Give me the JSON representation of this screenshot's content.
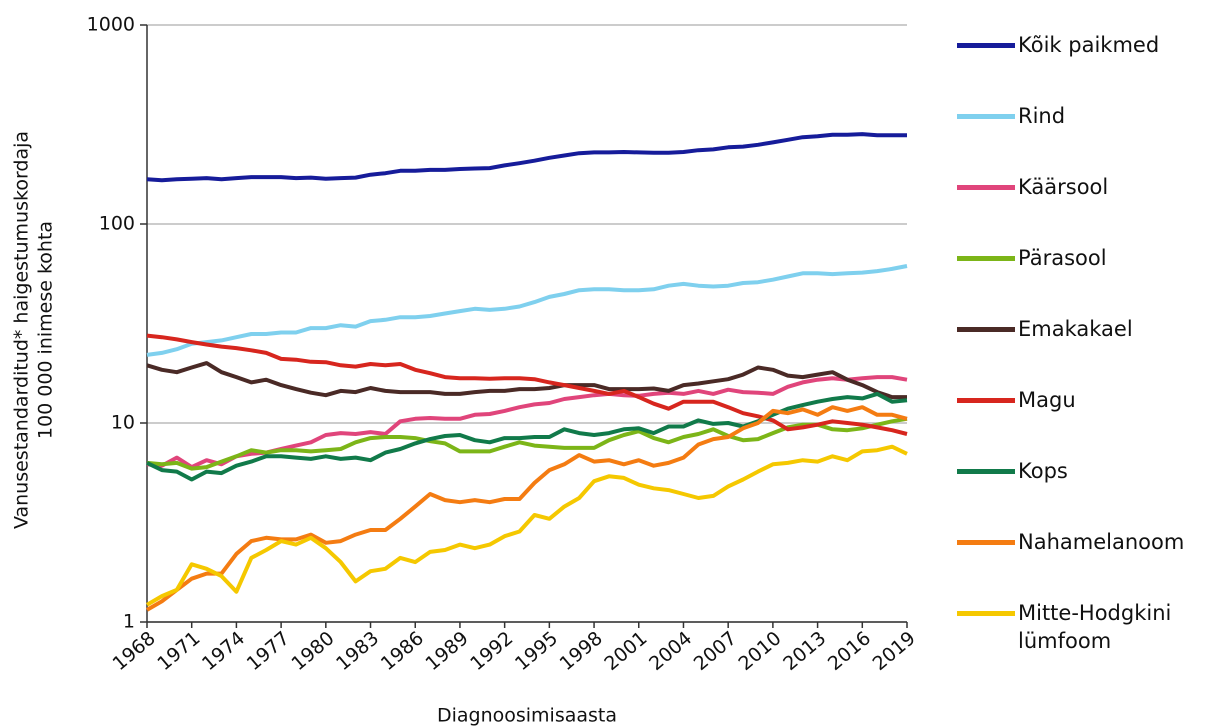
{
  "chart_data": {
    "type": "line",
    "ylabel": [
      "Vanusestandarditud* haigestumuskordaja",
      "100 000 inimese kohta"
    ],
    "xlabel": "Diagnoosimisaasta",
    "x": [
      1968,
      1969,
      1970,
      1971,
      1972,
      1973,
      1974,
      1975,
      1976,
      1977,
      1978,
      1979,
      1980,
      1981,
      1982,
      1983,
      1984,
      1985,
      1986,
      1987,
      1988,
      1989,
      1990,
      1991,
      1992,
      1993,
      1994,
      1995,
      1996,
      1997,
      1998,
      1999,
      2000,
      2001,
      2002,
      2003,
      2004,
      2005,
      2006,
      2007,
      2008,
      2009,
      2010,
      2011,
      2012,
      2013,
      2014,
      2015,
      2016,
      2017,
      2018,
      2019
    ],
    "xlim": [
      1968,
      2019
    ],
    "xticks": [
      1968,
      1971,
      1974,
      1977,
      1980,
      1983,
      1986,
      1989,
      1992,
      1995,
      1998,
      2001,
      2004,
      2007,
      2010,
      2013,
      2016,
      2019
    ],
    "ylim": [
      1,
      1000
    ],
    "yticks": [
      1,
      10,
      100,
      1000
    ],
    "log_y": true,
    "grid": true,
    "series": [
      {
        "name": "Kõik paikmed",
        "color": "#161c9a",
        "values": [
          168,
          166,
          168,
          169,
          170,
          168,
          170,
          172,
          172,
          172,
          170,
          171,
          169,
          170,
          171,
          177,
          180,
          185,
          185,
          187,
          187,
          189,
          190,
          191,
          197,
          202,
          208,
          215,
          221,
          227,
          229,
          229,
          230,
          229,
          228,
          228,
          230,
          235,
          237,
          243,
          245,
          250,
          257,
          265,
          273,
          276,
          281,
          281,
          283,
          279,
          279,
          279
        ]
      },
      {
        "name": "Rind",
        "color": "#7fd0ee",
        "values": [
          22,
          22.5,
          23.5,
          25,
          25.5,
          26,
          27,
          28,
          28,
          28.5,
          28.5,
          30,
          30,
          31,
          30.5,
          32.5,
          33,
          34,
          34,
          34.5,
          35.5,
          36.5,
          37.5,
          37,
          37.5,
          38.5,
          40.5,
          43,
          44.5,
          46.5,
          47,
          47,
          46.5,
          46.5,
          47,
          49,
          50,
          49,
          48.5,
          49,
          50.5,
          51,
          52.5,
          54.5,
          56.5,
          56.5,
          56,
          56.5,
          57,
          58,
          59.5,
          61.5
        ]
      },
      {
        "name": "Käärsool",
        "color": "#e0457b",
        "values": [
          6.2,
          6.1,
          6.7,
          6.0,
          6.5,
          6.2,
          6.8,
          7.0,
          7.1,
          7.4,
          7.7,
          8.0,
          8.7,
          8.9,
          8.8,
          9.0,
          8.8,
          10.2,
          10.5,
          10.6,
          10.5,
          10.5,
          11.0,
          11.1,
          11.5,
          12.0,
          12.4,
          12.6,
          13.2,
          13.5,
          13.8,
          14.0,
          13.8,
          13.7,
          14.0,
          14.2,
          14.0,
          14.5,
          14.0,
          14.7,
          14.3,
          14.2,
          14.0,
          15.2,
          16.0,
          16.5,
          16.8,
          16.5,
          16.8,
          17.0,
          17.0,
          16.5
        ]
      },
      {
        "name": "Pärasool",
        "color": "#7cb518",
        "values": [
          6.3,
          6.2,
          6.3,
          5.9,
          6.0,
          6.4,
          6.8,
          7.3,
          7.1,
          7.3,
          7.3,
          7.2,
          7.3,
          7.4,
          8.0,
          8.4,
          8.5,
          8.5,
          8.4,
          8.1,
          7.9,
          7.2,
          7.2,
          7.2,
          7.6,
          8.0,
          7.7,
          7.6,
          7.5,
          7.5,
          7.5,
          8.2,
          8.7,
          9.1,
          8.4,
          8.0,
          8.5,
          8.8,
          9.3,
          8.6,
          8.2,
          8.3,
          8.9,
          9.5,
          9.8,
          9.8,
          9.3,
          9.2,
          9.4,
          9.8,
          10.2,
          10.5
        ]
      },
      {
        "name": "Emakakael",
        "color": "#4a2a26",
        "values": [
          19.5,
          18.5,
          18.0,
          19.0,
          20.0,
          18.0,
          17.0,
          16.0,
          16.5,
          15.5,
          14.8,
          14.2,
          13.8,
          14.5,
          14.3,
          15.0,
          14.5,
          14.3,
          14.3,
          14.3,
          14.0,
          14.0,
          14.3,
          14.5,
          14.5,
          14.8,
          14.8,
          15.0,
          15.5,
          15.5,
          15.5,
          14.8,
          14.8,
          14.8,
          14.9,
          14.5,
          15.5,
          15.8,
          16.2,
          16.6,
          17.5,
          19.0,
          18.5,
          17.3,
          17.0,
          17.5,
          18.0,
          16.5,
          15.5,
          14.3,
          13.5,
          13.5
        ]
      },
      {
        "name": "Magu",
        "color": "#d7261e",
        "values": [
          27.5,
          27,
          26.3,
          25.5,
          24.8,
          24.2,
          23.8,
          23.2,
          22.5,
          21.0,
          20.8,
          20.3,
          20.2,
          19.5,
          19.2,
          19.8,
          19.5,
          19.8,
          18.5,
          17.8,
          17.0,
          16.8,
          16.8,
          16.7,
          16.8,
          16.8,
          16.6,
          16.0,
          15.5,
          15.0,
          14.5,
          14.0,
          14.5,
          13.5,
          12.5,
          11.8,
          12.8,
          12.8,
          12.8,
          12.0,
          11.2,
          10.8,
          10.3,
          9.3,
          9.5,
          9.8,
          10.2,
          10.0,
          9.8,
          9.5,
          9.2,
          8.8
        ]
      },
      {
        "name": "Kops",
        "color": "#117a4a",
        "values": [
          6.3,
          5.8,
          5.7,
          5.2,
          5.7,
          5.6,
          6.1,
          6.4,
          6.8,
          6.8,
          6.7,
          6.6,
          6.8,
          6.6,
          6.7,
          6.5,
          7.1,
          7.4,
          7.9,
          8.3,
          8.6,
          8.7,
          8.2,
          8.0,
          8.4,
          8.4,
          8.5,
          8.5,
          9.3,
          8.9,
          8.7,
          8.9,
          9.3,
          9.4,
          8.9,
          9.6,
          9.6,
          10.3,
          9.9,
          10.0,
          9.6,
          10.2,
          11.0,
          11.8,
          12.3,
          12.8,
          13.2,
          13.5,
          13.3,
          14.0,
          12.8,
          13.0
        ]
      },
      {
        "name": "Nahamelanoom",
        "color": "#f47c12",
        "values": [
          1.15,
          1.27,
          1.45,
          1.65,
          1.75,
          1.75,
          2.2,
          2.55,
          2.65,
          2.6,
          2.6,
          2.75,
          2.5,
          2.55,
          2.75,
          2.9,
          2.9,
          3.3,
          3.8,
          4.4,
          4.1,
          4.0,
          4.1,
          4.0,
          4.15,
          4.15,
          5.0,
          5.8,
          6.2,
          6.9,
          6.4,
          6.5,
          6.2,
          6.5,
          6.1,
          6.3,
          6.7,
          7.8,
          8.3,
          8.5,
          9.4,
          10.0,
          11.5,
          11.2,
          11.7,
          11.0,
          12.0,
          11.5,
          12.0,
          11.0,
          11.0,
          10.5
        ]
      },
      {
        "name": "Mitte-Hodgkini lümfoom",
        "color": "#f5c800",
        "values": [
          1.22,
          1.35,
          1.45,
          1.95,
          1.85,
          1.7,
          1.42,
          2.1,
          2.3,
          2.55,
          2.45,
          2.65,
          2.35,
          2.0,
          1.6,
          1.8,
          1.85,
          2.1,
          2.0,
          2.25,
          2.3,
          2.45,
          2.35,
          2.45,
          2.7,
          2.85,
          3.45,
          3.3,
          3.8,
          4.2,
          5.1,
          5.4,
          5.3,
          4.9,
          4.7,
          4.6,
          4.4,
          4.2,
          4.3,
          4.8,
          5.2,
          5.7,
          6.2,
          6.3,
          6.5,
          6.4,
          6.8,
          6.5,
          7.2,
          7.3,
          7.6,
          7.0
        ]
      }
    ]
  }
}
